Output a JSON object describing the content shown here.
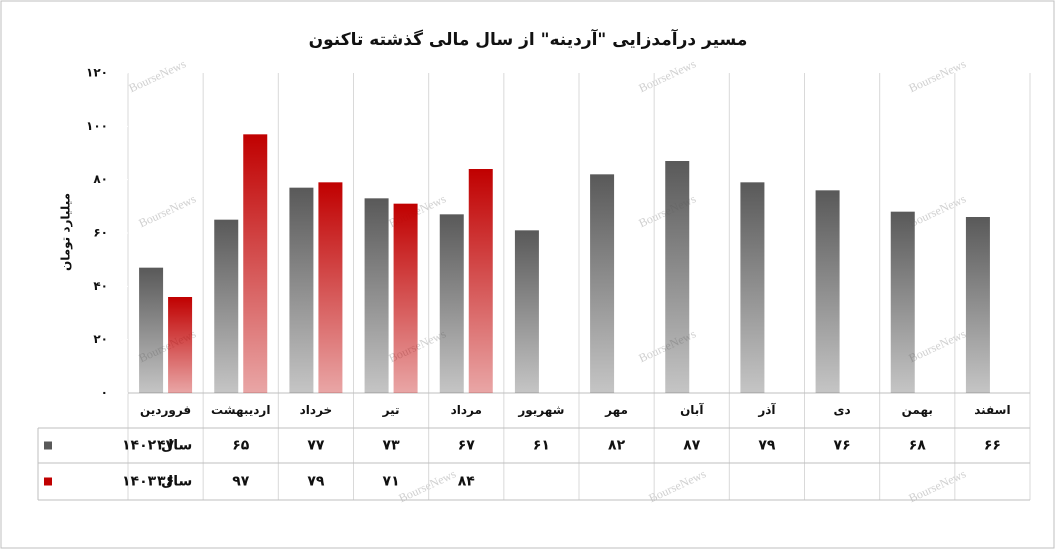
{
  "chart_data": {
    "type": "bar",
    "title": "مسیر درآمدزایی \"آردینه\" از سال مالی گذشته تاکنون",
    "y_label": "میلیارد تومان",
    "watermark": "BourseNews",
    "categories": [
      "فروردین",
      "اردیبهشت",
      "خرداد",
      "تیر",
      "مرداد",
      "شهریور",
      "مهر",
      "آبان",
      "آذر",
      "دی",
      "بهمن",
      "اسفند"
    ],
    "series": [
      {
        "name": "سال ۱۴۰۲",
        "color": "#595959",
        "values": [
          47,
          65,
          77,
          73,
          67,
          61,
          82,
          87,
          79,
          76,
          68,
          66
        ],
        "value_labels": [
          "۴۷",
          "۶۵",
          "۷۷",
          "۷۳",
          "۶۷",
          "۶۱",
          "۸۲",
          "۸۷",
          "۷۹",
          "۷۶",
          "۶۸",
          "۶۶"
        ]
      },
      {
        "name": "سال ۱۴۰۳",
        "color": "#c00000",
        "values": [
          36,
          97,
          79,
          71,
          84,
          null,
          null,
          null,
          null,
          null,
          null,
          null
        ],
        "value_labels": [
          "۳۶",
          "۹۷",
          "۷۹",
          "۷۱",
          "۸۴",
          null,
          null,
          null,
          null,
          null,
          null,
          null
        ]
      }
    ],
    "ylim": [
      0,
      120
    ],
    "yticks": [
      {
        "value": 0,
        "label": "۰"
      },
      {
        "value": 20,
        "label": "۲۰"
      },
      {
        "value": 40,
        "label": "۴۰"
      },
      {
        "value": 60,
        "label": "۶۰"
      },
      {
        "value": 80,
        "label": "۸۰"
      },
      {
        "value": 100,
        "label": "۱۰۰"
      },
      {
        "value": 120,
        "label": "۱۲۰"
      }
    ]
  }
}
